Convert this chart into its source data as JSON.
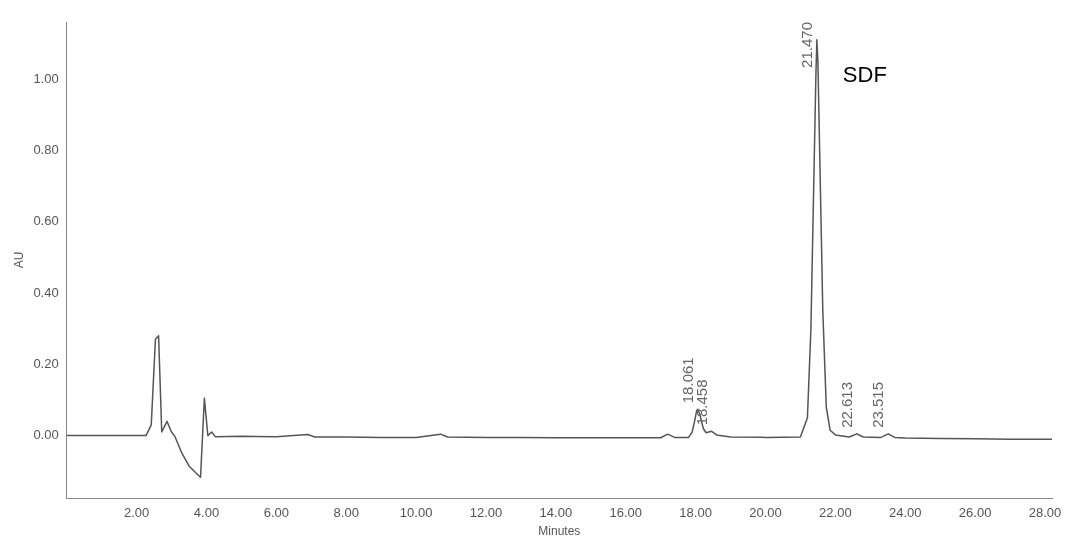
{
  "chart_data": {
    "type": "line",
    "xlabel": "Minutes",
    "ylabel": "AU",
    "color": "#555555",
    "grid": false,
    "legend": false,
    "marker": "none",
    "line_style": "solid",
    "xlim": [
      0,
      28.2
    ],
    "ylim": [
      -0.175,
      1.16
    ],
    "xticks": [
      {
        "value": 2,
        "label": "2.00"
      },
      {
        "value": 4,
        "label": "4.00"
      },
      {
        "value": 6,
        "label": "6.00"
      },
      {
        "value": 8,
        "label": "8.00"
      },
      {
        "value": 10,
        "label": "10.00"
      },
      {
        "value": 12,
        "label": "12.00"
      },
      {
        "value": 14,
        "label": "14.00"
      },
      {
        "value": 16,
        "label": "16.00"
      },
      {
        "value": 18,
        "label": "18.00"
      },
      {
        "value": 20,
        "label": "20.00"
      },
      {
        "value": 22,
        "label": "22.00"
      },
      {
        "value": 24,
        "label": "24.00"
      },
      {
        "value": 26,
        "label": "26.00"
      },
      {
        "value": 28,
        "label": "28.00"
      }
    ],
    "yticks": [
      {
        "value": 0,
        "label": "0.00"
      },
      {
        "value": 0.2,
        "label": "0.20"
      },
      {
        "value": 0.4,
        "label": "0.40"
      },
      {
        "value": 0.6,
        "label": "0.60"
      },
      {
        "value": 0.8,
        "label": "0.80"
      },
      {
        "value": 1,
        "label": "1.00"
      }
    ],
    "x": [
      0,
      1,
      2,
      2.27,
      2.42,
      2.54,
      2.63,
      2.72,
      2.87,
      3.0,
      3.1,
      3.3,
      3.5,
      3.7,
      3.83,
      3.94,
      4.04,
      4.15,
      4.25,
      5,
      6,
      6.9,
      7.1,
      8,
      9,
      10,
      10.7,
      10.9,
      12,
      13,
      14,
      15,
      16,
      17,
      17.2,
      17.4,
      17.8,
      17.9,
      17.97,
      18.03,
      18.061,
      18.12,
      18.22,
      18.3,
      18.458,
      18.6,
      19,
      20,
      21,
      21.2,
      21.3,
      21.38,
      21.44,
      21.47,
      21.5,
      21.56,
      21.64,
      21.74,
      21.85,
      22,
      22.4,
      22.613,
      22.8,
      23.3,
      23.515,
      23.7,
      24,
      25,
      26,
      27,
      28,
      28.2
    ],
    "values": [
      0,
      0,
      0,
      0,
      0.03,
      0.27,
      0.28,
      0.01,
      0.04,
      0.01,
      -0.003,
      -0.05,
      -0.085,
      -0.105,
      -0.117,
      0.105,
      0,
      0.01,
      -0.003,
      -0.002,
      -0.003,
      0.003,
      -0.004,
      -0.004,
      -0.005,
      -0.005,
      0.004,
      -0.004,
      -0.005,
      -0.005,
      -0.006,
      -0.006,
      -0.006,
      -0.006,
      0.004,
      -0.005,
      -0.005,
      0.01,
      0.04,
      0.07,
      0.074,
      0.06,
      0.02,
      0.008,
      0.012,
      0.002,
      -0.004,
      -0.005,
      -0.004,
      0.05,
      0.3,
      0.7,
      1.0,
      1.11,
      1.05,
      0.75,
      0.35,
      0.08,
      0.015,
      0.002,
      -0.004,
      0.005,
      -0.004,
      -0.005,
      0.005,
      -0.005,
      -0.007,
      -0.008,
      -0.009,
      -0.01,
      -0.01,
      -0.01
    ],
    "annotations": [
      {
        "text": "18.061",
        "x": 18.061,
        "y": 0.074
      },
      {
        "text": "18.458",
        "x": 18.458,
        "y": 0.012
      },
      {
        "text": "21.470",
        "x": 21.47,
        "y": 1.11
      },
      {
        "text": "22.613",
        "x": 22.613,
        "y": 0.005
      },
      {
        "text": "23.515",
        "x": 23.515,
        "y": 0.005
      },
      "SDF"
    ]
  }
}
